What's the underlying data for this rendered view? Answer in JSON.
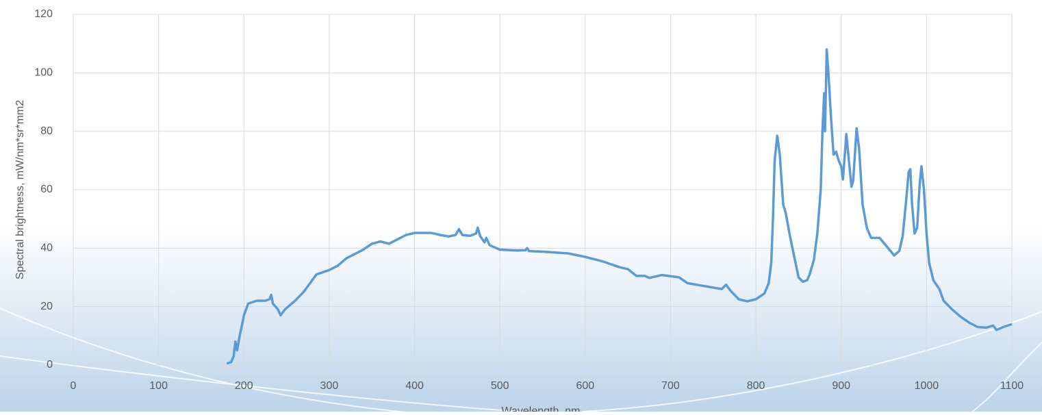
{
  "chart_data": {
    "type": "line",
    "x_label": "Wavelength, nm",
    "y_label": "Spectral brightness, mW/nm*sr*mm2",
    "xlim": [
      0,
      1100
    ],
    "xticks": [
      0,
      100,
      200,
      300,
      400,
      500,
      600,
      700,
      800,
      900,
      1000,
      1100
    ],
    "ylim": [
      0,
      120
    ],
    "yticks": [
      0,
      20,
      40,
      60,
      80,
      100,
      120
    ],
    "grid": true,
    "x": [
      180,
      185,
      188,
      190,
      192,
      195,
      198,
      200,
      205,
      210,
      215,
      220,
      225,
      230,
      232,
      234,
      240,
      243,
      248,
      252,
      260,
      270,
      280,
      285,
      300,
      310,
      320,
      330,
      340,
      350,
      360,
      370,
      380,
      390,
      400,
      420,
      430,
      440,
      448,
      452,
      456,
      465,
      472,
      474,
      477,
      482,
      484,
      488,
      500,
      520,
      530,
      532,
      534,
      550,
      580,
      600,
      620,
      640,
      650,
      660,
      670,
      675,
      690,
      710,
      720,
      740,
      760,
      765,
      770,
      780,
      790,
      800,
      810,
      815,
      818,
      820,
      822,
      825,
      828,
      832,
      835,
      840,
      845,
      850,
      855,
      860,
      863,
      868,
      872,
      876,
      878,
      880,
      881,
      883,
      885,
      888,
      891,
      894,
      897,
      900,
      902,
      906,
      909,
      912,
      914,
      918,
      921,
      925,
      930,
      935,
      945,
      955,
      962,
      968,
      972,
      976,
      979,
      981,
      983,
      986,
      989,
      992,
      994,
      997,
      1000,
      1003,
      1008,
      1015,
      1020,
      1030,
      1040,
      1050,
      1060,
      1070,
      1078,
      1082,
      1090,
      1100
    ],
    "series": [
      {
        "name": "Spectral brightness",
        "color": "#5b9bd5",
        "values": [
          0.5,
          1,
          3,
          8,
          5,
          10,
          14,
          17,
          21,
          21.5,
          22,
          22,
          22,
          22.5,
          24,
          21,
          19,
          17,
          19,
          20,
          22,
          25,
          29,
          31,
          32.5,
          34,
          36.5,
          38,
          39.5,
          41.5,
          42.3,
          41.5,
          43,
          44.5,
          45.2,
          45.2,
          44.5,
          44,
          44.5,
          46.5,
          44.5,
          44.2,
          45,
          47,
          44,
          42,
          43.5,
          41,
          39.5,
          39.2,
          39.3,
          40,
          39,
          38.8,
          38.2,
          37,
          35.5,
          33.5,
          32.8,
          30.5,
          30.5,
          29.8,
          30.8,
          30,
          28,
          27,
          26,
          27.5,
          25.5,
          22.5,
          21.8,
          22.5,
          24.5,
          28,
          35,
          50,
          70,
          78.5,
          72,
          55,
          52,
          44,
          37,
          30,
          28.5,
          29,
          31,
          36,
          45,
          60,
          80,
          93,
          80,
          108,
          100,
          85,
          72,
          73,
          70,
          68,
          63.5,
          79,
          70,
          61,
          63,
          81,
          74,
          55,
          47,
          43.5,
          43.5,
          40,
          37.5,
          39,
          44,
          56,
          66,
          67,
          55,
          45,
          47,
          62,
          68,
          60,
          45,
          35,
          29,
          26,
          22,
          19,
          16.5,
          14.5,
          13,
          12.8,
          13.5,
          12,
          13,
          14
        ]
      }
    ]
  }
}
